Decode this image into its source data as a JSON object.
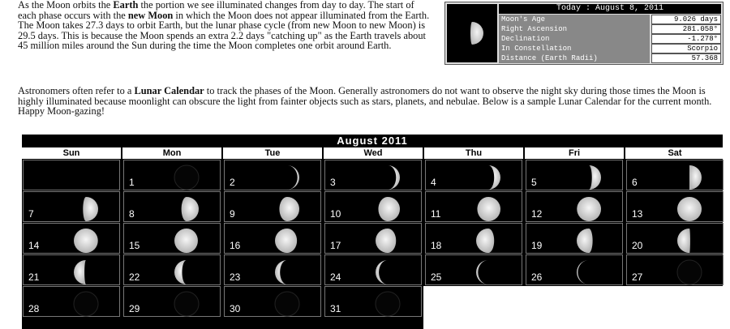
{
  "intro": {
    "t1": "As the Moon orbits the ",
    "b1": "Earth",
    "t2": " the portion we see illuminated changes from day to day. The start of each phase occurs with the ",
    "b2": "new Moon",
    "t3": " in which the Moon does not appear illuminated from the Earth. The Moon takes 27.3 days to orbit Earth, but the lunar phase cycle (from new Moon to new Moon) is 29.5 days. This is because the Moon spends an extra 2.2 days \"catching up\" as the Earth travels about 45 million miles around the Sun during the time the Moon completes one orbit around Earth."
  },
  "info": {
    "title": "Today : August 8, 2011",
    "rows": [
      {
        "label": "Moon's Age",
        "value": "9.026 days"
      },
      {
        "label": "Right Ascension",
        "value": "281.058°"
      },
      {
        "label": "Declination",
        "value": "-1.278°"
      },
      {
        "label": "In Constellation",
        "value": "Scorpio"
      },
      {
        "label": "Distance (Earth Radii)",
        "value": "57.368"
      }
    ]
  },
  "para": {
    "t1": "Astronomers often refer to a ",
    "b1": "Lunar Calendar",
    "t2": " to track the phases of the Moon. Generally astronomers do not want to observe the night sky during those times the Moon is highly illuminated because moonlight can obscure the light from fainter objects such as stars, planets, and nebulae. Below is a sample Lunar Calendar for the current month. Happy Moon-gazing!"
  },
  "calendar": {
    "title": "August 2011",
    "days_of_week": [
      "Sun",
      "Mon",
      "Tue",
      "Wed",
      "Thu",
      "Fri",
      "Sat"
    ],
    "first_weekday": 1,
    "days": [
      {
        "day": "1",
        "phase": 0.05
      },
      {
        "day": "2",
        "phase": 0.09
      },
      {
        "day": "3",
        "phase": 0.13
      },
      {
        "day": "4",
        "phase": 0.17
      },
      {
        "day": "5",
        "phase": 0.21
      },
      {
        "day": "6",
        "phase": 0.25
      },
      {
        "day": "7",
        "phase": 0.29
      },
      {
        "day": "8",
        "phase": 0.32
      },
      {
        "day": "9",
        "phase": 0.36
      },
      {
        "day": "10",
        "phase": 0.39
      },
      {
        "day": "11",
        "phase": 0.43
      },
      {
        "day": "12",
        "phase": 0.47
      },
      {
        "day": "13",
        "phase": 0.5
      },
      {
        "day": "14",
        "phase": 0.53
      },
      {
        "day": "15",
        "phase": 0.56
      },
      {
        "day": "16",
        "phase": 0.6
      },
      {
        "day": "17",
        "phase": 0.63
      },
      {
        "day": "18",
        "phase": 0.67
      },
      {
        "day": "19",
        "phase": 0.7
      },
      {
        "day": "20",
        "phase": 0.74
      },
      {
        "day": "21",
        "phase": 0.77
      },
      {
        "day": "22",
        "phase": 0.81
      },
      {
        "day": "23",
        "phase": 0.85
      },
      {
        "day": "24",
        "phase": 0.88
      },
      {
        "day": "25",
        "phase": 0.91
      },
      {
        "day": "26",
        "phase": 0.93
      },
      {
        "day": "27",
        "phase": 0.95
      },
      {
        "day": "28",
        "phase": 0.98
      },
      {
        "day": "29",
        "phase": 0.0
      },
      {
        "day": "30",
        "phase": 0.02
      },
      {
        "day": "31",
        "phase": 0.04
      }
    ]
  }
}
